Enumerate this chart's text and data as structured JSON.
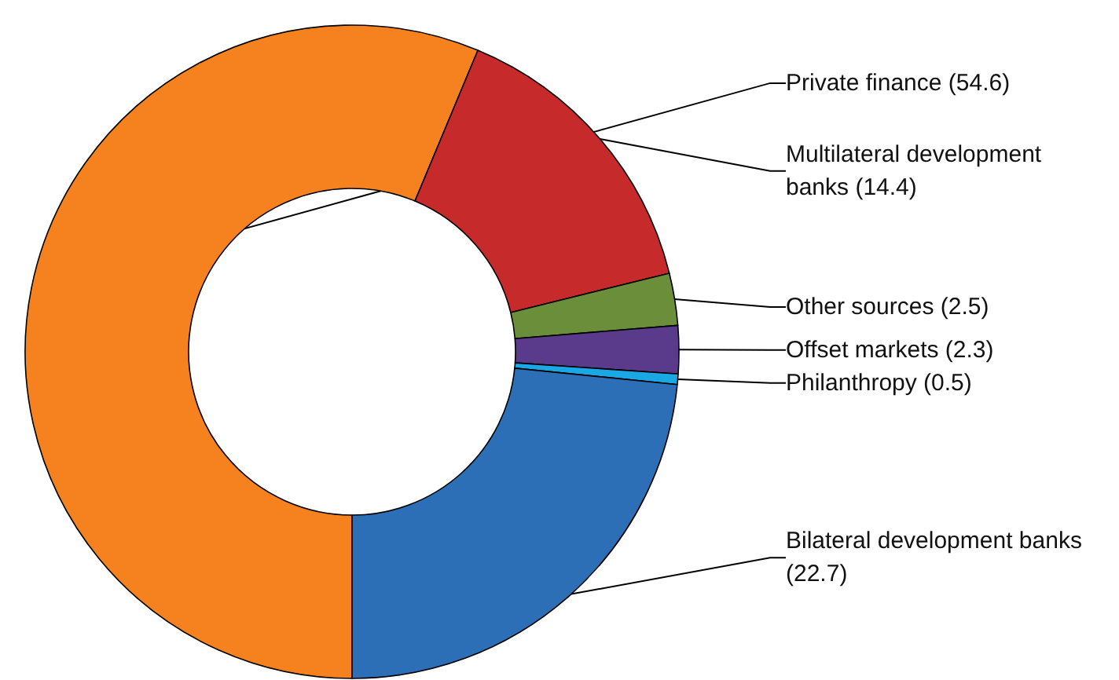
{
  "chart_data": {
    "type": "donut",
    "categories": [
      "Private finance",
      "Multilateral development banks",
      "Other sources",
      "Offset markets",
      "Philanthropy",
      "Bilateral development banks"
    ],
    "values": [
      54.6,
      14.4,
      2.5,
      2.3,
      0.5,
      22.7
    ],
    "colors": [
      "#f5821f",
      "#c62a2b",
      "#6b8e3a",
      "#5a3a8a",
      "#1aa8e4",
      "#2c6fb6"
    ],
    "value_labels": [
      "(54.6)",
      "(14.4)",
      "(2.5)",
      "(2.3)",
      "(0.5)",
      "(22.7)"
    ],
    "legend": false
  }
}
